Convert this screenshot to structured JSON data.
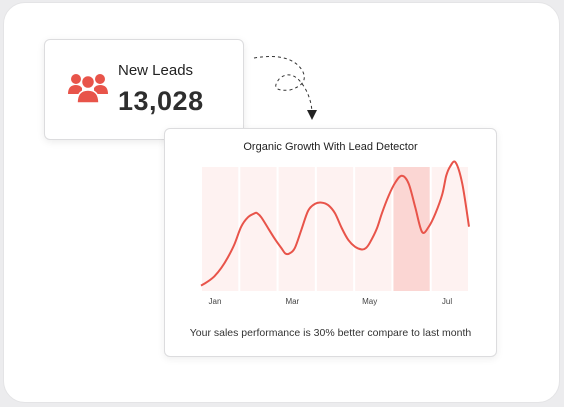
{
  "leads_card": {
    "label": "New Leads",
    "value": "13,028",
    "icon": "users-group-icon",
    "accent": "#e8544a"
  },
  "chart_card": {
    "footer": "Your sales performance is 30% better compare to last month"
  },
  "chart_data": {
    "type": "line",
    "title": "Organic Growth With Lead Detector",
    "x_tick_labels": [
      "Jan",
      "Mar",
      "May",
      "Jul"
    ],
    "line_color": "#e8544a",
    "band_color": "#fde8e6",
    "highlight_band_color": "#fbd6d3",
    "x": [
      0,
      0.5,
      1,
      1.5,
      2,
      2.5,
      3,
      3.5,
      4,
      4.2,
      4.5,
      5,
      5.5,
      6,
      6.3,
      6.6,
      7,
      7.5,
      8,
      8.5,
      9,
      9.5,
      10,
      10.5,
      11,
      11.5,
      12,
      12.3,
      12.6,
      13.1,
      13.5,
      14,
      14.5,
      15,
      15.5,
      16,
      16.5,
      17,
      17.5,
      18,
      18.3,
      18.6,
      19,
      19.5,
      20
    ],
    "y": [
      0.04,
      0.07,
      0.11,
      0.17,
      0.25,
      0.35,
      0.48,
      0.55,
      0.58,
      0.58,
      0.55,
      0.47,
      0.39,
      0.32,
      0.28,
      0.28,
      0.32,
      0.46,
      0.6,
      0.65,
      0.66,
      0.64,
      0.58,
      0.47,
      0.38,
      0.33,
      0.31,
      0.32,
      0.36,
      0.46,
      0.58,
      0.71,
      0.81,
      0.86,
      0.8,
      0.62,
      0.44,
      0.48,
      0.58,
      0.72,
      0.86,
      0.93,
      0.96,
      0.8,
      0.48
    ],
    "x_range": [
      0,
      20
    ],
    "y_range": [
      0,
      1
    ],
    "bands": [
      1,
      2,
      3,
      4,
      5,
      6,
      7
    ],
    "highlight_band": 6,
    "grid": false
  }
}
